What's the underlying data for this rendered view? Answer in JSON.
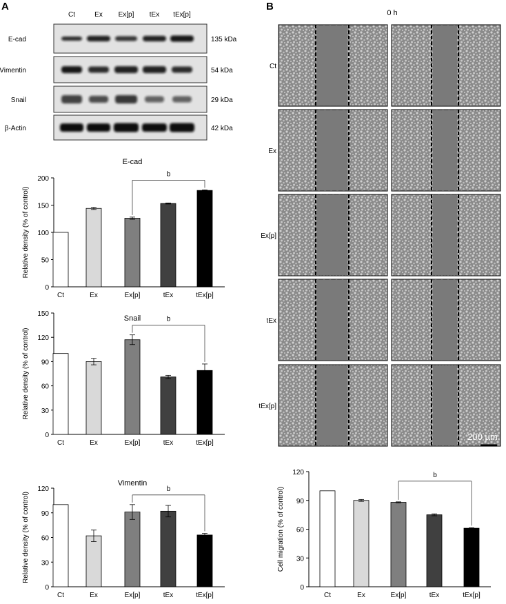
{
  "panels": {
    "a_label": "A",
    "b_label": "B"
  },
  "blot": {
    "lanes": [
      "Ct",
      "Ex",
      "Ex[p]",
      "tEx",
      "tEx[p]"
    ],
    "rows": [
      {
        "protein": "E-cad",
        "kda": "135 kDa"
      },
      {
        "protein": "Vimentin",
        "kda": "54 kDa"
      },
      {
        "protein": "Snail",
        "kda": "29 kDa"
      },
      {
        "protein": "β-Actin",
        "kda": "42 kDa"
      }
    ]
  },
  "migration_images": {
    "timepoint": "0 h",
    "rows": [
      "Ct",
      "Ex",
      "Ex[p]",
      "tEx",
      "tEx[p]"
    ],
    "scale_bar": "200 µm"
  },
  "bar_colors": [
    "#ffffff",
    "#d9d9d9",
    "#7f7f7f",
    "#404040",
    "#000000"
  ],
  "chart_data": [
    {
      "type": "bar",
      "title": "E-cad",
      "ylabel": "Relative density (% of control)",
      "categories": [
        "Ct",
        "Ex",
        "Ex[p]",
        "tEx",
        "tEx[p]"
      ],
      "values": [
        100,
        144,
        126,
        153,
        177
      ],
      "errors": [
        0,
        2,
        2,
        1,
        1
      ],
      "ylim": [
        0,
        200
      ],
      "yticks": [
        0,
        50,
        100,
        150,
        200
      ],
      "annotation": {
        "text": "b",
        "from": "Ex[p]",
        "to": "tEx[p]"
      }
    },
    {
      "type": "bar",
      "title": "Snail",
      "ylabel": "Relative density (% of control)",
      "categories": [
        "Ct",
        "Ex",
        "Ex[p]",
        "tEx",
        "tEx[p]"
      ],
      "values": [
        100,
        90,
        117,
        71,
        79
      ],
      "errors": [
        0,
        4,
        6,
        2,
        8
      ],
      "ylim": [
        0,
        150
      ],
      "yticks": [
        0,
        30,
        60,
        90,
        120,
        150
      ],
      "annotation": {
        "text": "b",
        "from": "Ex[p]",
        "to": "tEx[p]"
      }
    },
    {
      "type": "bar",
      "title": "Vimentin",
      "ylabel": "Relative density (% of control)",
      "categories": [
        "Ct",
        "Ex",
        "Ex[p]",
        "tEx",
        "tEx[p]"
      ],
      "values": [
        100,
        62,
        91,
        92,
        63
      ],
      "errors": [
        0,
        7,
        9,
        7,
        2
      ],
      "ylim": [
        0,
        120
      ],
      "yticks": [
        0,
        30,
        60,
        90,
        120
      ],
      "annotation": {
        "text": "b",
        "from": "Ex[p]",
        "to": "tEx[p]"
      }
    },
    {
      "type": "bar",
      "title": "",
      "ylabel": "Cell migration (% of control)",
      "categories": [
        "Ct",
        "Ex",
        "Ex[p]",
        "tEx",
        "tEx[p]"
      ],
      "values": [
        100,
        90,
        88,
        75,
        61
      ],
      "errors": [
        0,
        1,
        0.5,
        1,
        0.5
      ],
      "ylim": [
        0,
        120
      ],
      "yticks": [
        0,
        30,
        60,
        90,
        120
      ],
      "annotation": {
        "text": "b",
        "from": "Ex[p]",
        "to": "tEx[p]"
      }
    }
  ]
}
